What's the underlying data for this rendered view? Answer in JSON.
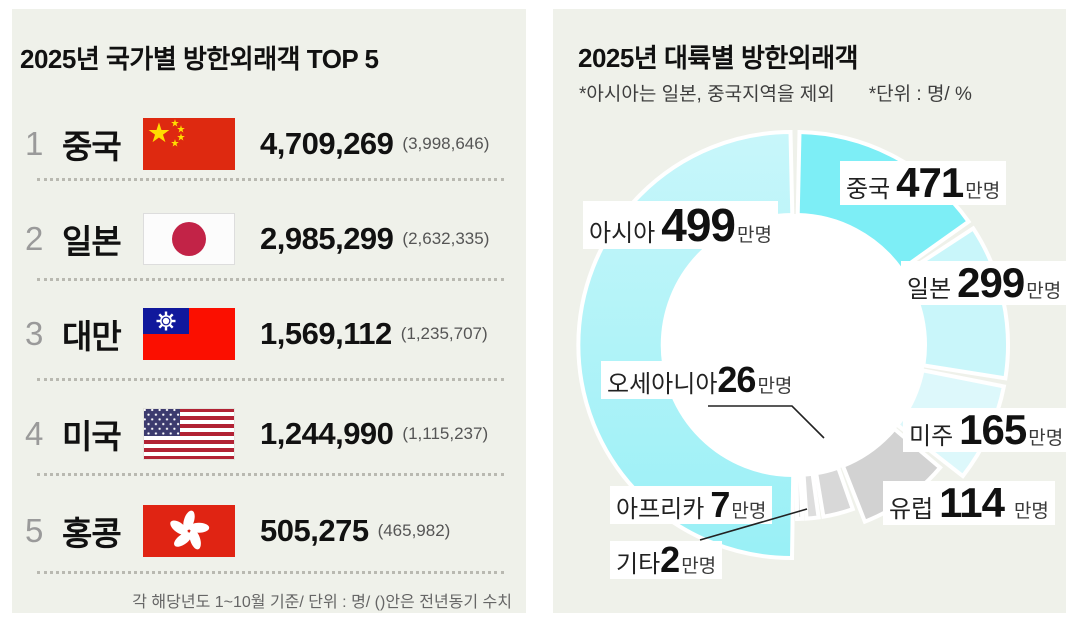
{
  "left_panel": {
    "title": "2025년 국가별 방한외래객 TOP 5",
    "footnote": "각 해당년도 1~10월 기준/ 단위 : 명/ ()안은 전년동기 수치",
    "rows": [
      {
        "rank": "1",
        "country": "중국",
        "flag": "china-flag",
        "value": "4,709,269",
        "prev": "(3,998,646)"
      },
      {
        "rank": "2",
        "country": "일본",
        "flag": "japan-flag",
        "value": "2,985,299",
        "prev": "(2,632,335)"
      },
      {
        "rank": "3",
        "country": "대만",
        "flag": "taiwan-flag",
        "value": "1,569,112",
        "prev": "(1,235,707)"
      },
      {
        "rank": "4",
        "country": "미국",
        "flag": "usa-flag",
        "value": "1,244,990",
        "prev": "(1,115,237)"
      },
      {
        "rank": "5",
        "country": "홍콩",
        "flag": "hongkong-flag",
        "value": "505,275",
        "prev": "(465,982)"
      }
    ]
  },
  "right_panel": {
    "title": "2025년 대륙별 방한외래객",
    "note_region": "*아시아는 일본, 중국지역을 제외",
    "note_unit": "*단위 : 명/ %"
  },
  "chart_data": {
    "type": "pie",
    "variant": "donut",
    "title": "2025년 대륙별 방한외래객",
    "notes": [
      "*아시아는 일본, 중국지역을 제외",
      "*단위 : 명/ %"
    ],
    "unit": "만명",
    "center": [
      242,
      336
    ],
    "inner_r": 130,
    "gap_color": "#ffffff",
    "asia_gradient": [
      "#c8f6fa",
      "#99f0f6"
    ],
    "segments": [
      {
        "label": "중국",
        "value": 471,
        "suffix": "만명",
        "color": "#7deef6",
        "start": 1.2,
        "end": 54.6,
        "outer_r": 213
      },
      {
        "label": "일본",
        "value": 299,
        "suffix": "만명",
        "color": "#c9f6fa",
        "start": 56.8,
        "end": 99.0,
        "outer_r": 213
      },
      {
        "label": "미주",
        "value": 165,
        "suffix": "만명",
        "color": "#ddf8fb",
        "start": 101.2,
        "end": 128.0,
        "outer_r": 213
      },
      {
        "label": "유럽",
        "value": 114,
        "suffix": "만명",
        "color": "#d2d2d2",
        "start": 130.2,
        "end": 158.4,
        "outer_r": 190
      },
      {
        "label": "오세아니아",
        "value": 26,
        "suffix": "만명",
        "color": "#d8d8d8",
        "start": 160.6,
        "end": 170.6,
        "outer_r": 174
      },
      {
        "label": "아프리카",
        "value": 7,
        "suffix": "만명",
        "color": "#dddddd",
        "start": 172.2,
        "end": 176.2,
        "outer_r": 174
      },
      {
        "label": "기타",
        "value": 2,
        "suffix": "만명",
        "color": "#e2e2e2",
        "start": 177.6,
        "end": 179.3,
        "outer_r": 174
      },
      {
        "label": "아시아",
        "value": 499,
        "suffix": "만명",
        "color": "gradient",
        "start": 180.8,
        "end": 358.8,
        "outer_r": 213
      }
    ]
  }
}
